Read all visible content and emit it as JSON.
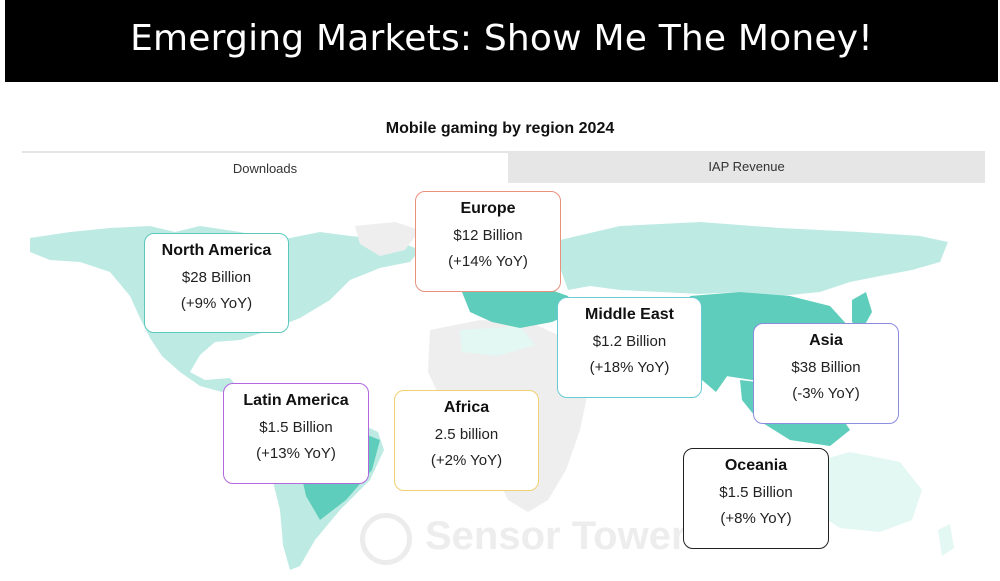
{
  "banner": {
    "title": "Emerging Markets: Show Me The Money!"
  },
  "chart_data": {
    "type": "map",
    "title": "Mobile gaming by region 2024",
    "tabs": [
      {
        "label": "Downloads",
        "selected": true
      },
      {
        "label": "IAP Revenue",
        "selected": false
      }
    ],
    "regions": [
      {
        "name": "North America",
        "value": "$28 Billion",
        "yoy": "(+9% YoY)",
        "border_color": "#5cc8bd"
      },
      {
        "name": "Europe",
        "value": "$12 Billion",
        "yoy": "(+14% YoY)",
        "border_color": "#e8917d"
      },
      {
        "name": "Middle East",
        "value": "$1.2 Billion",
        "yoy": "(+18% YoY)",
        "border_color": "#68cbd2"
      },
      {
        "name": "Asia",
        "value": "$38 Billion",
        "yoy": "(-3% YoY)",
        "border_color": "#8b8ddf"
      },
      {
        "name": "Latin America",
        "value": "$1.5 Billion",
        "yoy": "(+13% YoY)",
        "border_color": "#b267dd"
      },
      {
        "name": "Africa",
        "value": "2.5 billion",
        "yoy": "(+2% YoY)",
        "border_color": "#f0d070"
      },
      {
        "name": "Oceania",
        "value": "$1.5 Billion",
        "yoy": "(+8% YoY)",
        "border_color": "#222222"
      }
    ],
    "map_colors": {
      "light": "#bdebe3",
      "dark": "#5fcdbb",
      "neutral": "#eeeeee"
    }
  },
  "watermark": "Sensor Tower"
}
